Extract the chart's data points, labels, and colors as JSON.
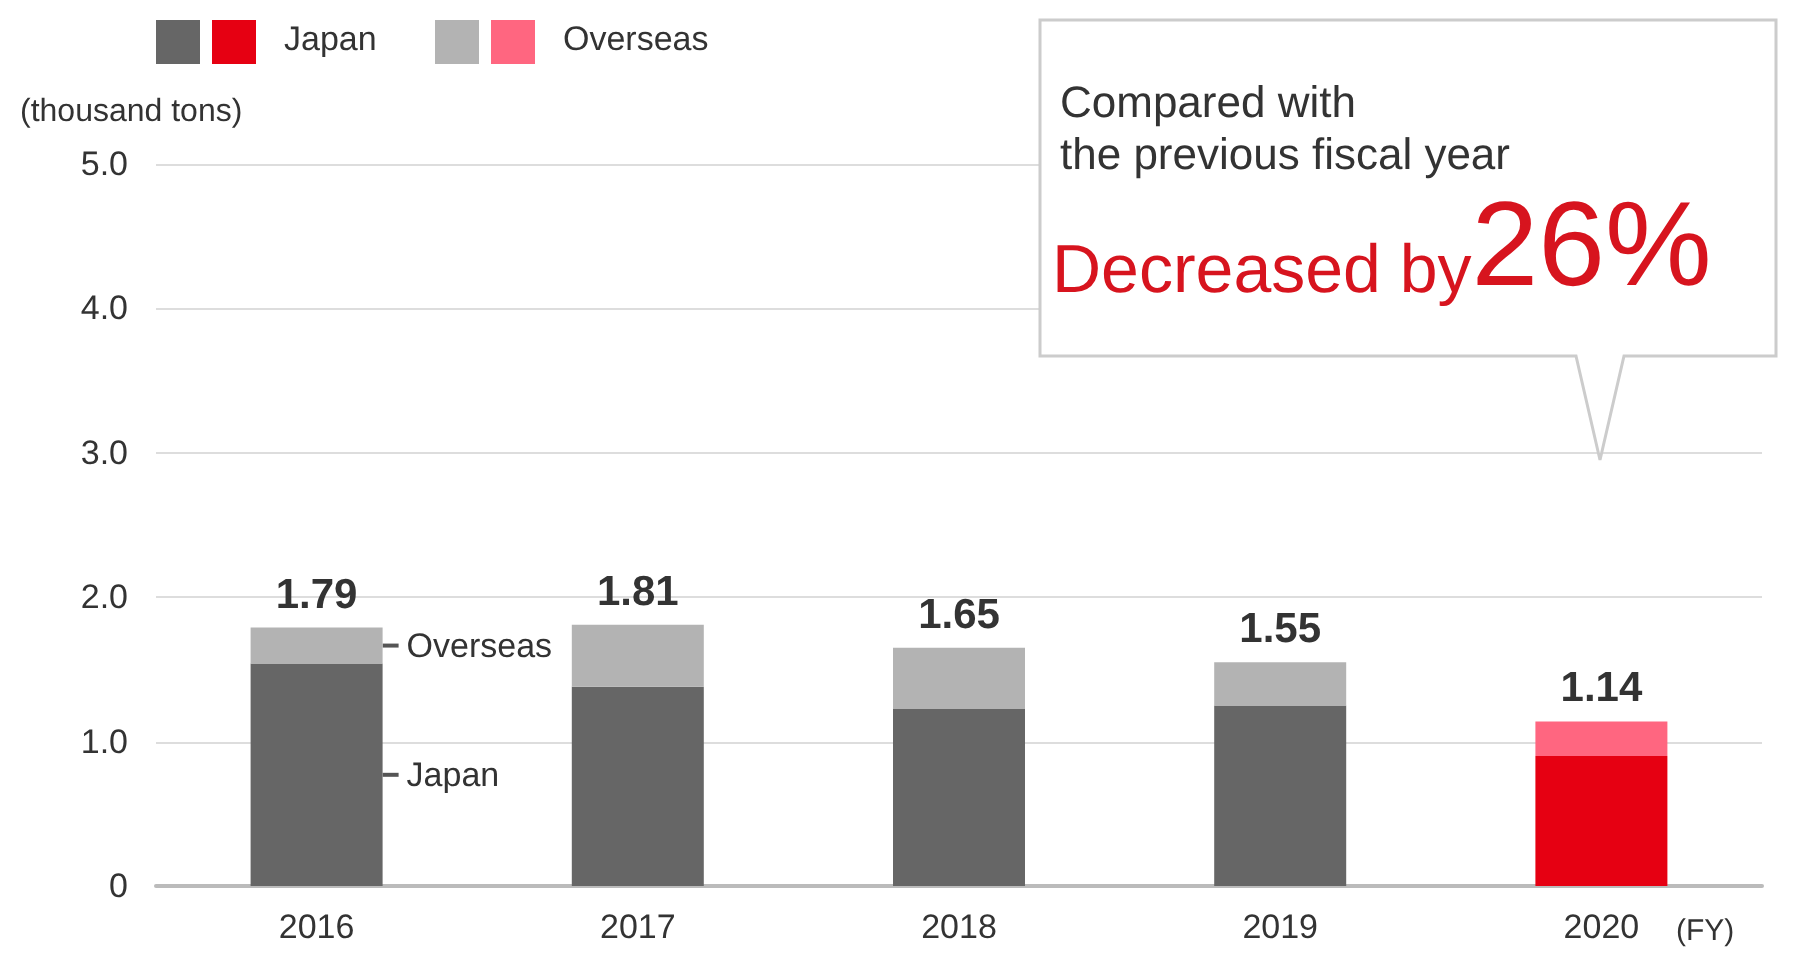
{
  "chart_data": {
    "type": "bar",
    "stacked": true,
    "ylabel": "(thousand tons)",
    "xlabel": "(FY)",
    "categories": [
      "2016",
      "2017",
      "2018",
      "2019",
      "2020"
    ],
    "series": [
      {
        "name": "Japan",
        "colors": [
          "#666666",
          "#666666",
          "#666666",
          "#666666",
          "#e60012"
        ],
        "values": [
          1.54,
          1.38,
          1.23,
          1.25,
          0.9
        ]
      },
      {
        "name": "Overseas",
        "colors": [
          "#b3b3b3",
          "#b3b3b3",
          "#b3b3b3",
          "#b3b3b3",
          "#ff6680"
        ],
        "values": [
          0.25,
          0.43,
          0.42,
          0.3,
          0.24
        ]
      }
    ],
    "totals": [
      "1.79",
      "1.81",
      "1.65",
      "1.55",
      "1.14"
    ],
    "ylim": [
      0,
      5
    ],
    "yticks": [
      0,
      {
        "value": 1,
        "label": "1.0"
      },
      {
        "value": 2,
        "label": "2.0"
      },
      {
        "value": 3,
        "label": "3.0"
      },
      {
        "value": 4,
        "label": "4.0"
      },
      {
        "value": 5,
        "label": "5.0"
      }
    ],
    "grid": "y",
    "legend": "top left",
    "annotations": [
      "Compared with\nthe previous fiscal year",
      "Decreased by26%",
      "Overseas",
      "Japan"
    ]
  }
}
